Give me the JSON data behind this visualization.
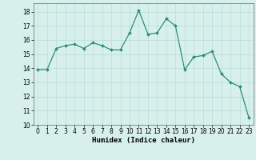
{
  "x": [
    0,
    1,
    2,
    3,
    4,
    5,
    6,
    7,
    8,
    9,
    10,
    11,
    12,
    13,
    14,
    15,
    16,
    17,
    18,
    19,
    20,
    21,
    22,
    23
  ],
  "y": [
    13.9,
    13.9,
    15.4,
    15.6,
    15.7,
    15.4,
    15.8,
    15.6,
    15.3,
    15.3,
    16.5,
    18.1,
    16.4,
    16.5,
    17.5,
    17.0,
    13.9,
    14.8,
    14.9,
    15.2,
    13.6,
    13.0,
    12.7,
    10.5
  ],
  "line_color": "#2e8b7a",
  "marker": "D",
  "marker_size": 2.0,
  "xlabel": "Humidex (Indice chaleur)",
  "ylim": [
    10,
    18.6
  ],
  "xlim": [
    -0.5,
    23.5
  ],
  "yticks": [
    10,
    11,
    12,
    13,
    14,
    15,
    16,
    17,
    18
  ],
  "xticks": [
    0,
    1,
    2,
    3,
    4,
    5,
    6,
    7,
    8,
    9,
    10,
    11,
    12,
    13,
    14,
    15,
    16,
    17,
    18,
    19,
    20,
    21,
    22,
    23
  ],
  "bg_color": "#d8f0ec",
  "grid_color": "#b8dcd8",
  "xlabel_fontsize": 6.5,
  "tick_fontsize": 5.5,
  "linewidth": 0.9
}
